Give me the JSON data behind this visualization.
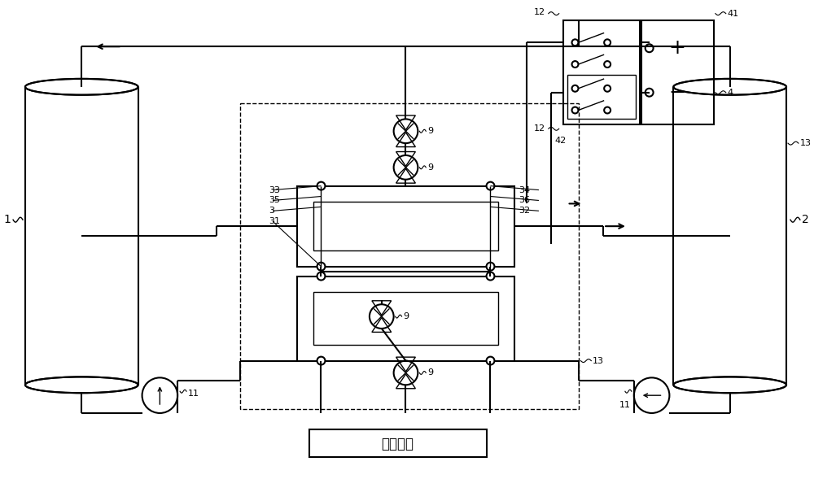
{
  "bg_color": "#ffffff",
  "line_color": "#000000",
  "lw": 1.5,
  "lw_thin": 1.0,
  "fig_width": 10.0,
  "fig_height": 5.89,
  "dpi": 100,
  "control_label": "控制系统"
}
